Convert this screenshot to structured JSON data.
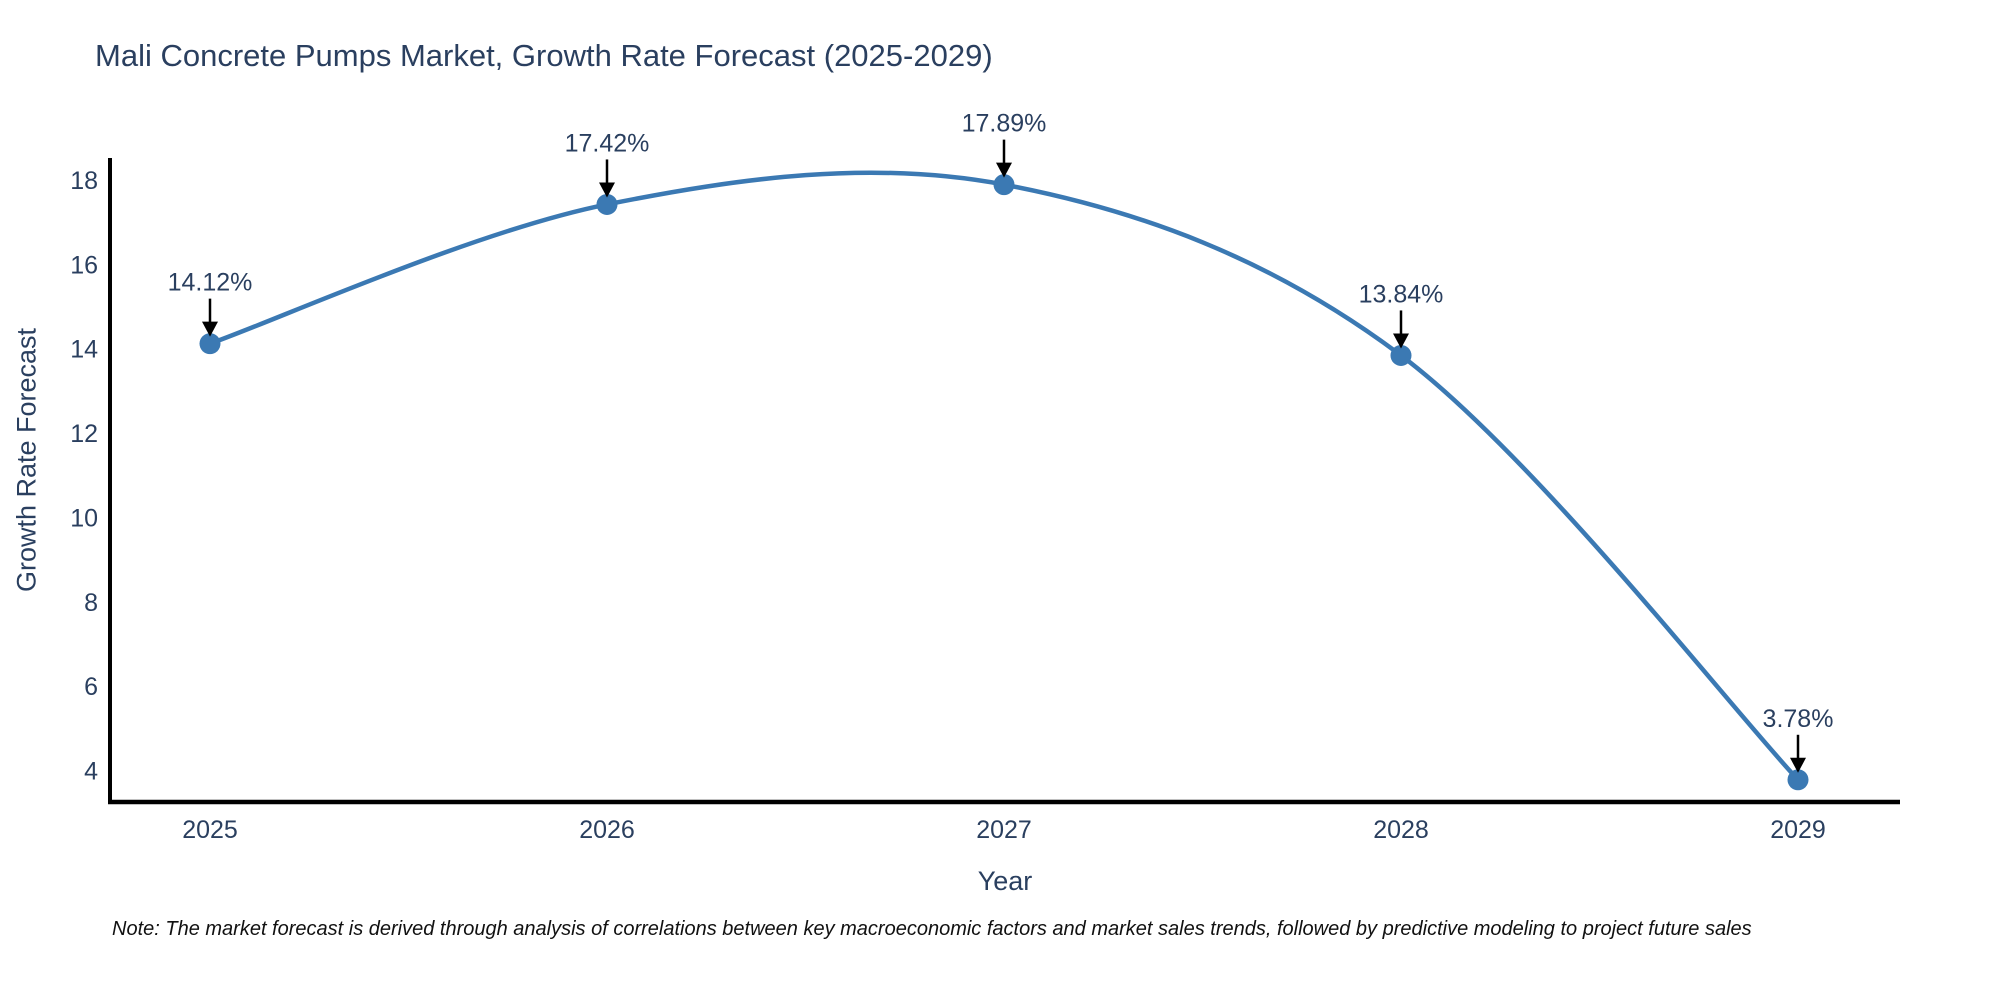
{
  "title": "Mali Concrete Pumps Market, Growth Rate Forecast (2025-2029)",
  "note": "Note: The market forecast is derived through analysis of correlations between key macroeconomic factors and market sales trends, followed by predictive modeling to project future sales",
  "chart_data": {
    "type": "line",
    "line_shape": "spline",
    "title": "Mali Concrete Pumps Market, Growth Rate Forecast (2025-2029)",
    "xlabel": "Year",
    "ylabel": "Growth Rate Forecast",
    "x": [
      2025,
      2026,
      2027,
      2028,
      2029
    ],
    "values": [
      14.12,
      17.42,
      17.89,
      13.84,
      3.78
    ],
    "point_labels": [
      "14.12%",
      "17.42%",
      "17.89%",
      "13.84%",
      "3.78%"
    ],
    "x_tick_labels": [
      "2025",
      "2026",
      "2027",
      "2028",
      "2029"
    ],
    "y_ticks": [
      4,
      6,
      8,
      10,
      12,
      14,
      16,
      18
    ],
    "xlim": [
      2024.76,
      2029.26
    ],
    "ylim": [
      3.25,
      18.55
    ],
    "grid": "off",
    "legend": "none",
    "colors": {
      "line": "#3b79b3",
      "marker": "#3b79b3",
      "axis": "#000000",
      "tick_text": "#2a3f5f",
      "annotation_text": "#2a3f5f",
      "arrow": "#000000"
    }
  }
}
